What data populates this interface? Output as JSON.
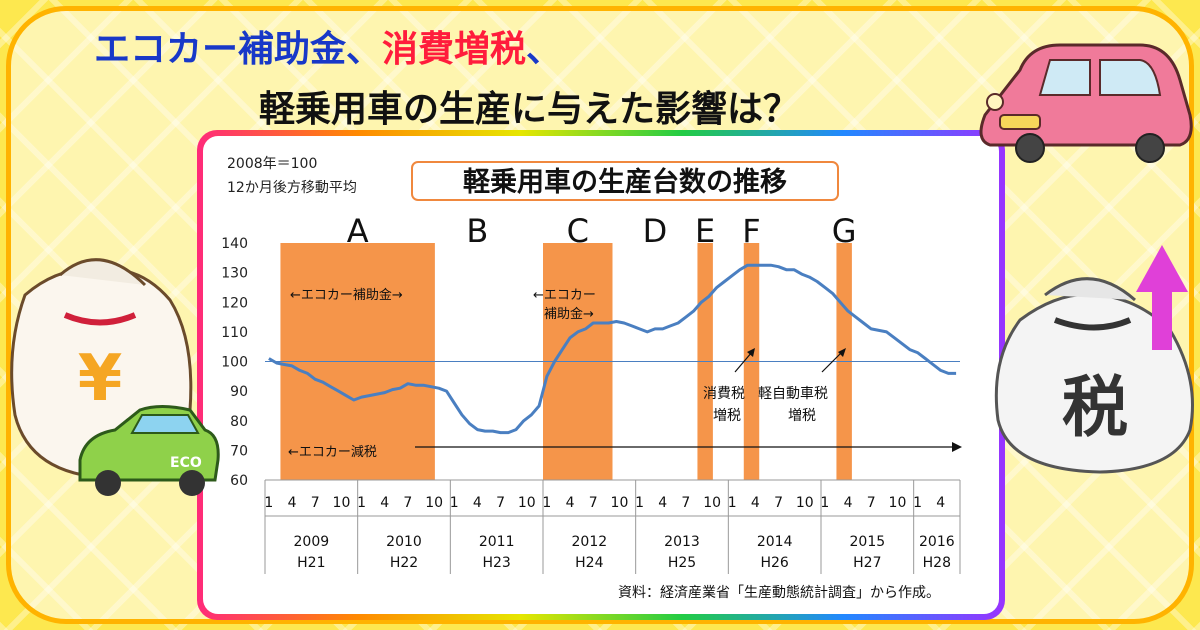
{
  "headline": {
    "line1_part1": "エコカー補助金",
    "line1_sep1": "、",
    "line1_part2": "消費増税",
    "line1_sep2": "、",
    "line2": "軽乗用車の生産に与えた影響は？"
  },
  "colors": {
    "background": "#fde84f",
    "highlight": "#5ee5e0",
    "title_blue": "#1838c8",
    "title_red": "#ff1c3c",
    "band": "#f5954a",
    "line": "#4a7fc1",
    "ref_line": "#4a7fc1"
  },
  "decorations": {
    "car_top_right": "pink-car-icon",
    "money_bag_left": "yen-money-bag-icon",
    "eco_car": "eco-car-icon",
    "tax_bag_right": "tax-bag-icon",
    "up_arrow": "up-arrow-icon",
    "tax_label": "税",
    "yen_label": "¥",
    "eco_label": "ECO"
  },
  "chart_data": {
    "type": "line",
    "title": "軽乗用車の生産台数の推移",
    "base_note_1": "2008年＝100",
    "base_note_2": "12か月後方移動平均",
    "ylim": [
      60,
      140
    ],
    "yticks": [
      60,
      70,
      80,
      90,
      100,
      110,
      120,
      130,
      140
    ],
    "reference_line": 100,
    "x_start": "2009-01",
    "x_end": "2016-06",
    "month_ticks": [
      1,
      4,
      7,
      10,
      1,
      4,
      7,
      10,
      1,
      4,
      7,
      10,
      1,
      4,
      7,
      10,
      1,
      4,
      7,
      10,
      1,
      4,
      7,
      10,
      1,
      4,
      7,
      10,
      1,
      4
    ],
    "years": [
      {
        "year": "2009",
        "era": "H21"
      },
      {
        "year": "2010",
        "era": "H22"
      },
      {
        "year": "2011",
        "era": "H23"
      },
      {
        "year": "2012",
        "era": "H24"
      },
      {
        "year": "2013",
        "era": "H25"
      },
      {
        "year": "2014",
        "era": "H26"
      },
      {
        "year": "2015",
        "era": "H27"
      },
      {
        "year": "2016",
        "era": "H28"
      }
    ],
    "periods": [
      {
        "label": "A",
        "from": "2009-03",
        "to": "2010-10"
      },
      {
        "label": "B",
        "center": "2011-04"
      },
      {
        "label": "C",
        "from": "2012-01",
        "to": "2012-09"
      },
      {
        "label": "D",
        "center": "2013-03"
      },
      {
        "label": "E",
        "from": "2013-09",
        "to": "2013-10"
      },
      {
        "label": "F",
        "from": "2014-03",
        "to": "2014-04"
      },
      {
        "label": "G",
        "from": "2015-03",
        "to": "2015-04"
      }
    ],
    "annotations": {
      "ecocar_subsidy_1": "←エコカー補助金→",
      "ecocar_subsidy_2a": "←エコカー",
      "ecocar_subsidy_2b": "補助金→",
      "ecocar_tax_cut": "←エコカー減税",
      "consumption_tax_1": "消費税",
      "consumption_tax_2": "増税",
      "kei_tax_1": "軽自動車税",
      "kei_tax_2": "増税"
    },
    "series": [
      {
        "x": [
          "2009-01",
          "2009-02",
          "2009-03",
          "2009-04",
          "2009-05",
          "2009-06",
          "2009-07",
          "2009-08",
          "2009-09",
          "2009-10",
          "2009-11",
          "2009-12",
          "2010-01",
          "2010-02",
          "2010-03",
          "2010-04",
          "2010-05",
          "2010-06",
          "2010-07",
          "2010-08",
          "2010-09",
          "2010-10",
          "2010-11",
          "2010-12",
          "2011-01",
          "2011-02",
          "2011-03",
          "2011-04",
          "2011-05",
          "2011-06",
          "2011-07",
          "2011-08",
          "2011-09",
          "2011-10",
          "2011-11",
          "2011-12",
          "2012-01",
          "2012-02",
          "2012-03",
          "2012-04",
          "2012-05",
          "2012-06",
          "2012-07",
          "2012-08",
          "2012-09",
          "2012-10",
          "2012-11",
          "2012-12",
          "2013-01",
          "2013-02",
          "2013-03",
          "2013-04",
          "2013-05",
          "2013-06",
          "2013-07",
          "2013-08",
          "2013-09",
          "2013-10",
          "2013-11",
          "2013-12",
          "2014-01",
          "2014-02",
          "2014-03",
          "2014-04",
          "2014-05",
          "2014-06",
          "2014-07",
          "2014-08",
          "2014-09",
          "2014-10",
          "2014-11",
          "2014-12",
          "2015-01",
          "2015-02",
          "2015-03",
          "2015-04",
          "2015-05",
          "2015-06",
          "2015-07",
          "2015-08",
          "2015-09",
          "2015-10",
          "2015-11",
          "2015-12",
          "2016-01",
          "2016-02",
          "2016-03",
          "2016-04",
          "2016-05",
          "2016-06"
        ],
        "values": [
          101,
          99.5,
          99,
          98.5,
          97,
          96,
          94,
          93,
          91.5,
          90,
          88.5,
          87,
          88,
          88.5,
          89,
          89.5,
          90.5,
          91,
          92.5,
          92,
          92,
          91.5,
          91,
          90,
          86,
          82,
          79,
          77,
          76.5,
          76.5,
          76,
          76,
          77,
          80,
          82,
          85,
          95,
          100,
          104,
          108,
          110,
          111,
          113,
          113,
          113,
          113.5,
          113,
          112,
          111,
          110,
          111,
          111,
          112,
          113,
          115,
          117,
          120,
          122,
          125,
          127,
          129,
          131,
          132.5,
          132.5,
          132.5,
          132.5,
          132,
          131,
          131,
          129.5,
          128.5,
          127,
          125,
          123,
          120,
          117,
          115,
          113,
          111,
          110.5,
          110,
          108,
          106,
          104,
          103,
          101,
          99,
          97,
          96,
          96
        ]
      }
    ],
    "source": "資料：経済産業省「生産動態統計調査」から作成。"
  }
}
